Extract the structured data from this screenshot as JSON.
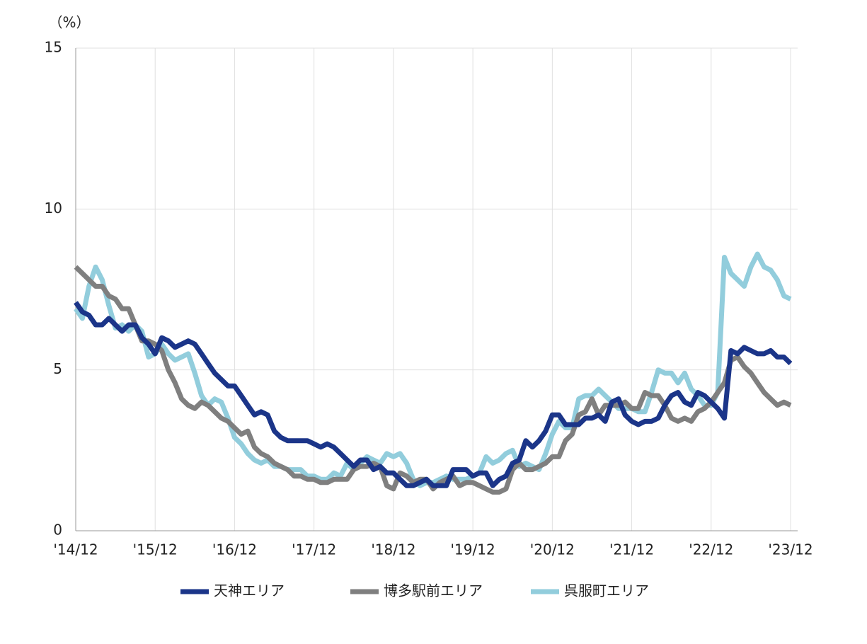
{
  "chart_data": {
    "type": "line",
    "y_axis_label": "（%）",
    "categories": [
      "'14/12",
      null,
      null,
      null,
      null,
      null,
      null,
      null,
      null,
      null,
      null,
      null,
      "'15/12",
      null,
      null,
      null,
      null,
      null,
      null,
      null,
      null,
      null,
      null,
      null,
      "'16/12",
      null,
      null,
      null,
      null,
      null,
      null,
      null,
      null,
      null,
      null,
      null,
      "'17/12",
      null,
      null,
      null,
      null,
      null,
      null,
      null,
      null,
      null,
      null,
      null,
      "'18/12",
      null,
      null,
      null,
      null,
      null,
      null,
      null,
      null,
      null,
      null,
      null,
      "'19/12",
      null,
      null,
      null,
      null,
      null,
      null,
      null,
      null,
      null,
      null,
      null,
      "'20/12",
      null,
      null,
      null,
      null,
      null,
      null,
      null,
      null,
      null,
      null,
      null,
      "'21/12",
      null,
      null,
      null,
      null,
      null,
      null,
      null,
      null,
      null,
      null,
      null,
      "'22/12",
      null,
      null,
      null,
      null,
      null,
      null,
      null,
      null,
      null,
      null,
      null,
      "'23/12"
    ],
    "series": [
      {
        "name": "天神エリア",
        "color": "#1b3589",
        "values": [
          7.1,
          6.8,
          6.7,
          6.4,
          6.4,
          6.6,
          6.4,
          6.2,
          6.4,
          6.4,
          6.0,
          5.8,
          5.5,
          6.0,
          5.9,
          5.7,
          5.8,
          5.9,
          5.8,
          5.5,
          5.2,
          4.9,
          4.7,
          4.5,
          4.5,
          4.2,
          3.9,
          3.6,
          3.7,
          3.6,
          3.1,
          2.9,
          2.8,
          2.8,
          2.8,
          2.8,
          2.7,
          2.6,
          2.7,
          2.6,
          2.4,
          2.2,
          2.0,
          2.2,
          2.2,
          1.9,
          2.0,
          1.8,
          1.8,
          1.6,
          1.4,
          1.4,
          1.5,
          1.6,
          1.4,
          1.4,
          1.4,
          1.9,
          1.9,
          1.9,
          1.7,
          1.8,
          1.8,
          1.4,
          1.6,
          1.7,
          2.1,
          2.2,
          2.8,
          2.6,
          2.8,
          3.1,
          3.6,
          3.6,
          3.3,
          3.3,
          3.3,
          3.5,
          3.5,
          3.6,
          3.4,
          4.0,
          4.1,
          3.6,
          3.4,
          3.3,
          3.4,
          3.4,
          3.5,
          3.9,
          4.2,
          4.3,
          4.0,
          3.9,
          4.3,
          4.2,
          4.0,
          3.8,
          3.5,
          5.6,
          5.5,
          5.7,
          5.6,
          5.5,
          5.5,
          5.6,
          5.4,
          5.4,
          5.2
        ]
      },
      {
        "name": "博多駅前エリア",
        "color": "#7f7f7f",
        "values": [
          8.2,
          8.0,
          7.8,
          7.6,
          7.6,
          7.3,
          7.2,
          6.9,
          6.9,
          6.4,
          5.9,
          5.9,
          5.8,
          5.6,
          5.0,
          4.6,
          4.1,
          3.9,
          3.8,
          4.0,
          3.9,
          3.7,
          3.5,
          3.4,
          3.2,
          3.0,
          3.1,
          2.6,
          2.4,
          2.3,
          2.1,
          2.0,
          1.9,
          1.7,
          1.7,
          1.6,
          1.6,
          1.5,
          1.5,
          1.6,
          1.6,
          1.6,
          1.9,
          2.0,
          2.0,
          2.1,
          2.0,
          1.4,
          1.3,
          1.8,
          1.7,
          1.5,
          1.6,
          1.6,
          1.3,
          1.5,
          1.6,
          1.7,
          1.4,
          1.5,
          1.5,
          1.4,
          1.3,
          1.2,
          1.2,
          1.3,
          1.9,
          2.1,
          1.9,
          1.9,
          2.0,
          2.1,
          2.3,
          2.3,
          2.8,
          3.0,
          3.6,
          3.7,
          4.1,
          3.6,
          3.9,
          3.9,
          3.9,
          4.0,
          3.8,
          3.8,
          4.3,
          4.2,
          4.2,
          3.9,
          3.5,
          3.4,
          3.5,
          3.4,
          3.7,
          3.8,
          4.0,
          4.3,
          4.6,
          5.3,
          5.4,
          5.1,
          4.9,
          4.6,
          4.3,
          4.1,
          3.9,
          4.0,
          3.9
        ]
      },
      {
        "name": "呉服町エリア",
        "color": "#92cddc",
        "values": [
          6.9,
          6.6,
          7.6,
          8.2,
          7.8,
          7.0,
          6.3,
          6.4,
          6.2,
          6.4,
          6.2,
          5.4,
          5.5,
          5.8,
          5.5,
          5.3,
          5.4,
          5.5,
          4.9,
          4.2,
          3.9,
          4.1,
          4.0,
          3.5,
          2.9,
          2.7,
          2.4,
          2.2,
          2.1,
          2.2,
          2.0,
          2.0,
          1.9,
          1.9,
          1.9,
          1.7,
          1.7,
          1.6,
          1.6,
          1.8,
          1.7,
          2.1,
          1.9,
          2.1,
          2.3,
          2.2,
          2.1,
          2.4,
          2.3,
          2.4,
          2.1,
          1.6,
          1.4,
          1.5,
          1.5,
          1.6,
          1.7,
          1.6,
          1.6,
          1.6,
          1.7,
          1.8,
          2.3,
          2.1,
          2.2,
          2.4,
          2.5,
          2.0,
          2.1,
          2.0,
          1.9,
          2.4,
          3.0,
          3.4,
          3.2,
          3.2,
          4.1,
          4.2,
          4.2,
          4.4,
          4.2,
          4.0,
          3.8,
          3.8,
          3.8,
          3.7,
          3.7,
          4.3,
          5.0,
          4.9,
          4.9,
          4.6,
          4.9,
          4.4,
          4.2,
          3.9,
          3.9,
          4.3,
          8.5,
          8.0,
          7.8,
          7.6,
          8.2,
          8.6,
          8.2,
          8.1,
          7.8,
          7.3,
          7.2
        ]
      }
    ],
    "ylim": [
      0,
      15
    ],
    "yticks": [
      0,
      5,
      10,
      15
    ],
    "grid": true
  }
}
